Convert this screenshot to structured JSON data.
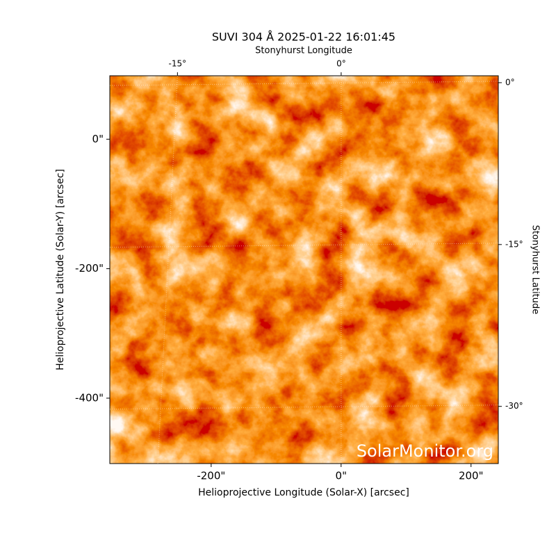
{
  "chart_data": {
    "type": "image",
    "title": "SUVI 304 Å 2025-01-22 16:01:45",
    "xlabel": "Helioprojective Longitude (Solar-X) [arcsec]",
    "ylabel": "Helioprojective Latitude (Solar-Y) [arcsec]",
    "x2label": "Stonyhurst Longitude",
    "y2label": "Stonyhurst Latitude",
    "annotation": "SolarMonitor.org",
    "xlim": [
      -356,
      242
    ],
    "ylim": [
      -501,
      98
    ],
    "xticks": [
      {
        "value": -200,
        "label": "-200\""
      },
      {
        "value": 0,
        "label": "0\""
      },
      {
        "value": 200,
        "label": "200\""
      }
    ],
    "yticks": [
      {
        "value": 0,
        "label": "0\""
      },
      {
        "value": -200,
        "label": "-200\""
      },
      {
        "value": -400,
        "label": "-400\""
      }
    ],
    "x2lim": [
      -21.2,
      14.4
    ],
    "x2ticks": [
      {
        "value": -15,
        "label": "-15°"
      },
      {
        "value": 0,
        "label": "0°"
      }
    ],
    "y2lim": [
      -35.3,
      0.64
    ],
    "y2ticks": [
      {
        "value": 0,
        "label": "0°"
      },
      {
        "value": -15,
        "label": "-15°"
      },
      {
        "value": -30,
        "label": "-30°"
      }
    ],
    "grid": true
  }
}
